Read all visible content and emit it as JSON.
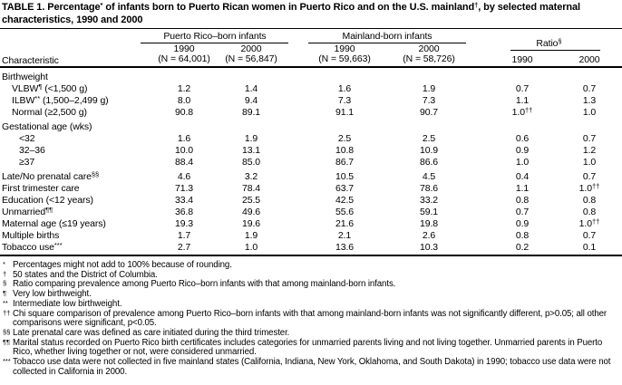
{
  "title": "TABLE 1. Percentage^{*} of infants born to Puerto Rican women in Puerto Rico and on the U.S. mainland^{†}, by selected maternal characteristics, 1990 and 2000",
  "table": {
    "char_header": "Characteristic",
    "groups": [
      {
        "label": "Puerto Rico–born infants",
        "cols": [
          {
            "year": "1990",
            "n": "(N = 64,001)"
          },
          {
            "year": "2000",
            "n": "(N = 56,847)"
          }
        ]
      },
      {
        "label": "Mainland-born infants",
        "cols": [
          {
            "year": "1990",
            "n": "(N = 59,663)"
          },
          {
            "year": "2000",
            "n": "(N = 58,726)"
          }
        ]
      },
      {
        "label": "Ratio^{§}",
        "cols": [
          {
            "year": "1990",
            "n": ""
          },
          {
            "year": "2000",
            "n": ""
          }
        ]
      }
    ],
    "rows": [
      {
        "label": "Birthweight",
        "indent": 0,
        "group": true,
        "values": [
          "",
          "",
          "",
          "",
          "",
          ""
        ]
      },
      {
        "label": "VLBW^{¶} (<1,500 g)",
        "indent": 1,
        "values": [
          "1.2",
          "1.4",
          "1.6",
          "1.9",
          "0.7",
          "0.7"
        ]
      },
      {
        "label": "ILBW^{**} (1,500–2,499 g)",
        "indent": 1,
        "values": [
          "8.0",
          "9.4",
          "7.3",
          "7.3",
          "1.1",
          "1.3"
        ]
      },
      {
        "label": "Normal (≥2,500 g)",
        "indent": 1,
        "values": [
          "90.8",
          "89.1",
          "91.1",
          "90.7",
          "1.0^{††}",
          "1.0"
        ]
      },
      {
        "label": "Gestational age (wks)",
        "indent": 0,
        "group": true,
        "gap": true,
        "values": [
          "",
          "",
          "",
          "",
          "",
          ""
        ]
      },
      {
        "label": "<32",
        "indent": 2,
        "values": [
          "1.6",
          "1.9",
          "2.5",
          "2.5",
          "0.6",
          "0.7"
        ]
      },
      {
        "label": "32–36",
        "indent": 2,
        "values": [
          "10.0",
          "13.1",
          "10.8",
          "10.9",
          "0.9",
          "1.2"
        ]
      },
      {
        "label": "≥37",
        "indent": 2,
        "values": [
          "88.4",
          "85.0",
          "86.7",
          "86.6",
          "1.0",
          "1.0"
        ]
      },
      {
        "label": "Late/No prenatal care^{§§}",
        "indent": 0,
        "gap": true,
        "values": [
          "4.6",
          "3.2",
          "10.5",
          "4.5",
          "0.4",
          "0.7"
        ]
      },
      {
        "label": "First trimester care",
        "indent": 0,
        "values": [
          "71.3",
          "78.4",
          "63.7",
          "78.6",
          "1.1",
          "1.0^{††}"
        ]
      },
      {
        "label": "Education (<12 years)",
        "indent": 0,
        "values": [
          "33.4",
          "25.5",
          "42.5",
          "33.2",
          "0.8",
          "0.8"
        ]
      },
      {
        "label": "Unmarried^{¶¶}",
        "indent": 0,
        "values": [
          "36.8",
          "49.6",
          "55.6",
          "59.1",
          "0.7",
          "0.8"
        ]
      },
      {
        "label": "Maternal age (≤19 years)",
        "indent": 0,
        "values": [
          "19.3",
          "19.6",
          "21.6",
          "19.8",
          "0.9",
          "1.0^{††}"
        ]
      },
      {
        "label": "Multiple births",
        "indent": 0,
        "values": [
          "1.7",
          "1.9",
          "2.1",
          "2.6",
          "0.8",
          "0.7"
        ]
      },
      {
        "label": "Tobacco use^{***}",
        "indent": 0,
        "values": [
          "2.7",
          "1.0",
          "13.6",
          "10.3",
          "0.2",
          "0.1"
        ]
      }
    ]
  },
  "footnotes": [
    {
      "marker": "*",
      "text": "Percentages might not add to 100% because of rounding."
    },
    {
      "marker": "†",
      "text": "50 states and the District of Columbia."
    },
    {
      "marker": "§",
      "text": "Ratio comparing prevalence among Puerto Rico–born infants with that among mainland-born infants."
    },
    {
      "marker": "¶",
      "text": "Very low birthweight."
    },
    {
      "marker": "**",
      "text": "Intermediate low birthweight."
    },
    {
      "marker": "††",
      "text": "Chi square comparison of prevalence among Puerto Rico–born infants with that among mainland-born infants was not significantly different, p>0.05; all other comparisons were significant, p<0.05."
    },
    {
      "marker": "§§",
      "text": "Late prenatal care was defined as care initiated during the third trimester."
    },
    {
      "marker": "¶¶",
      "text": "Marital status recorded on Puerto Rico birth certificates includes categories for unmarried parents living and not living together. Unmarried parents in Puerto Rico, whether living together or not, were considered unmarried."
    },
    {
      "marker": "***",
      "text": "Tobacco use data were not collected in five mainland states (California, Indiana, New York, Oklahoma, and South Dakota) in 1990; tobacco use data were not collected in California in 2000."
    }
  ]
}
